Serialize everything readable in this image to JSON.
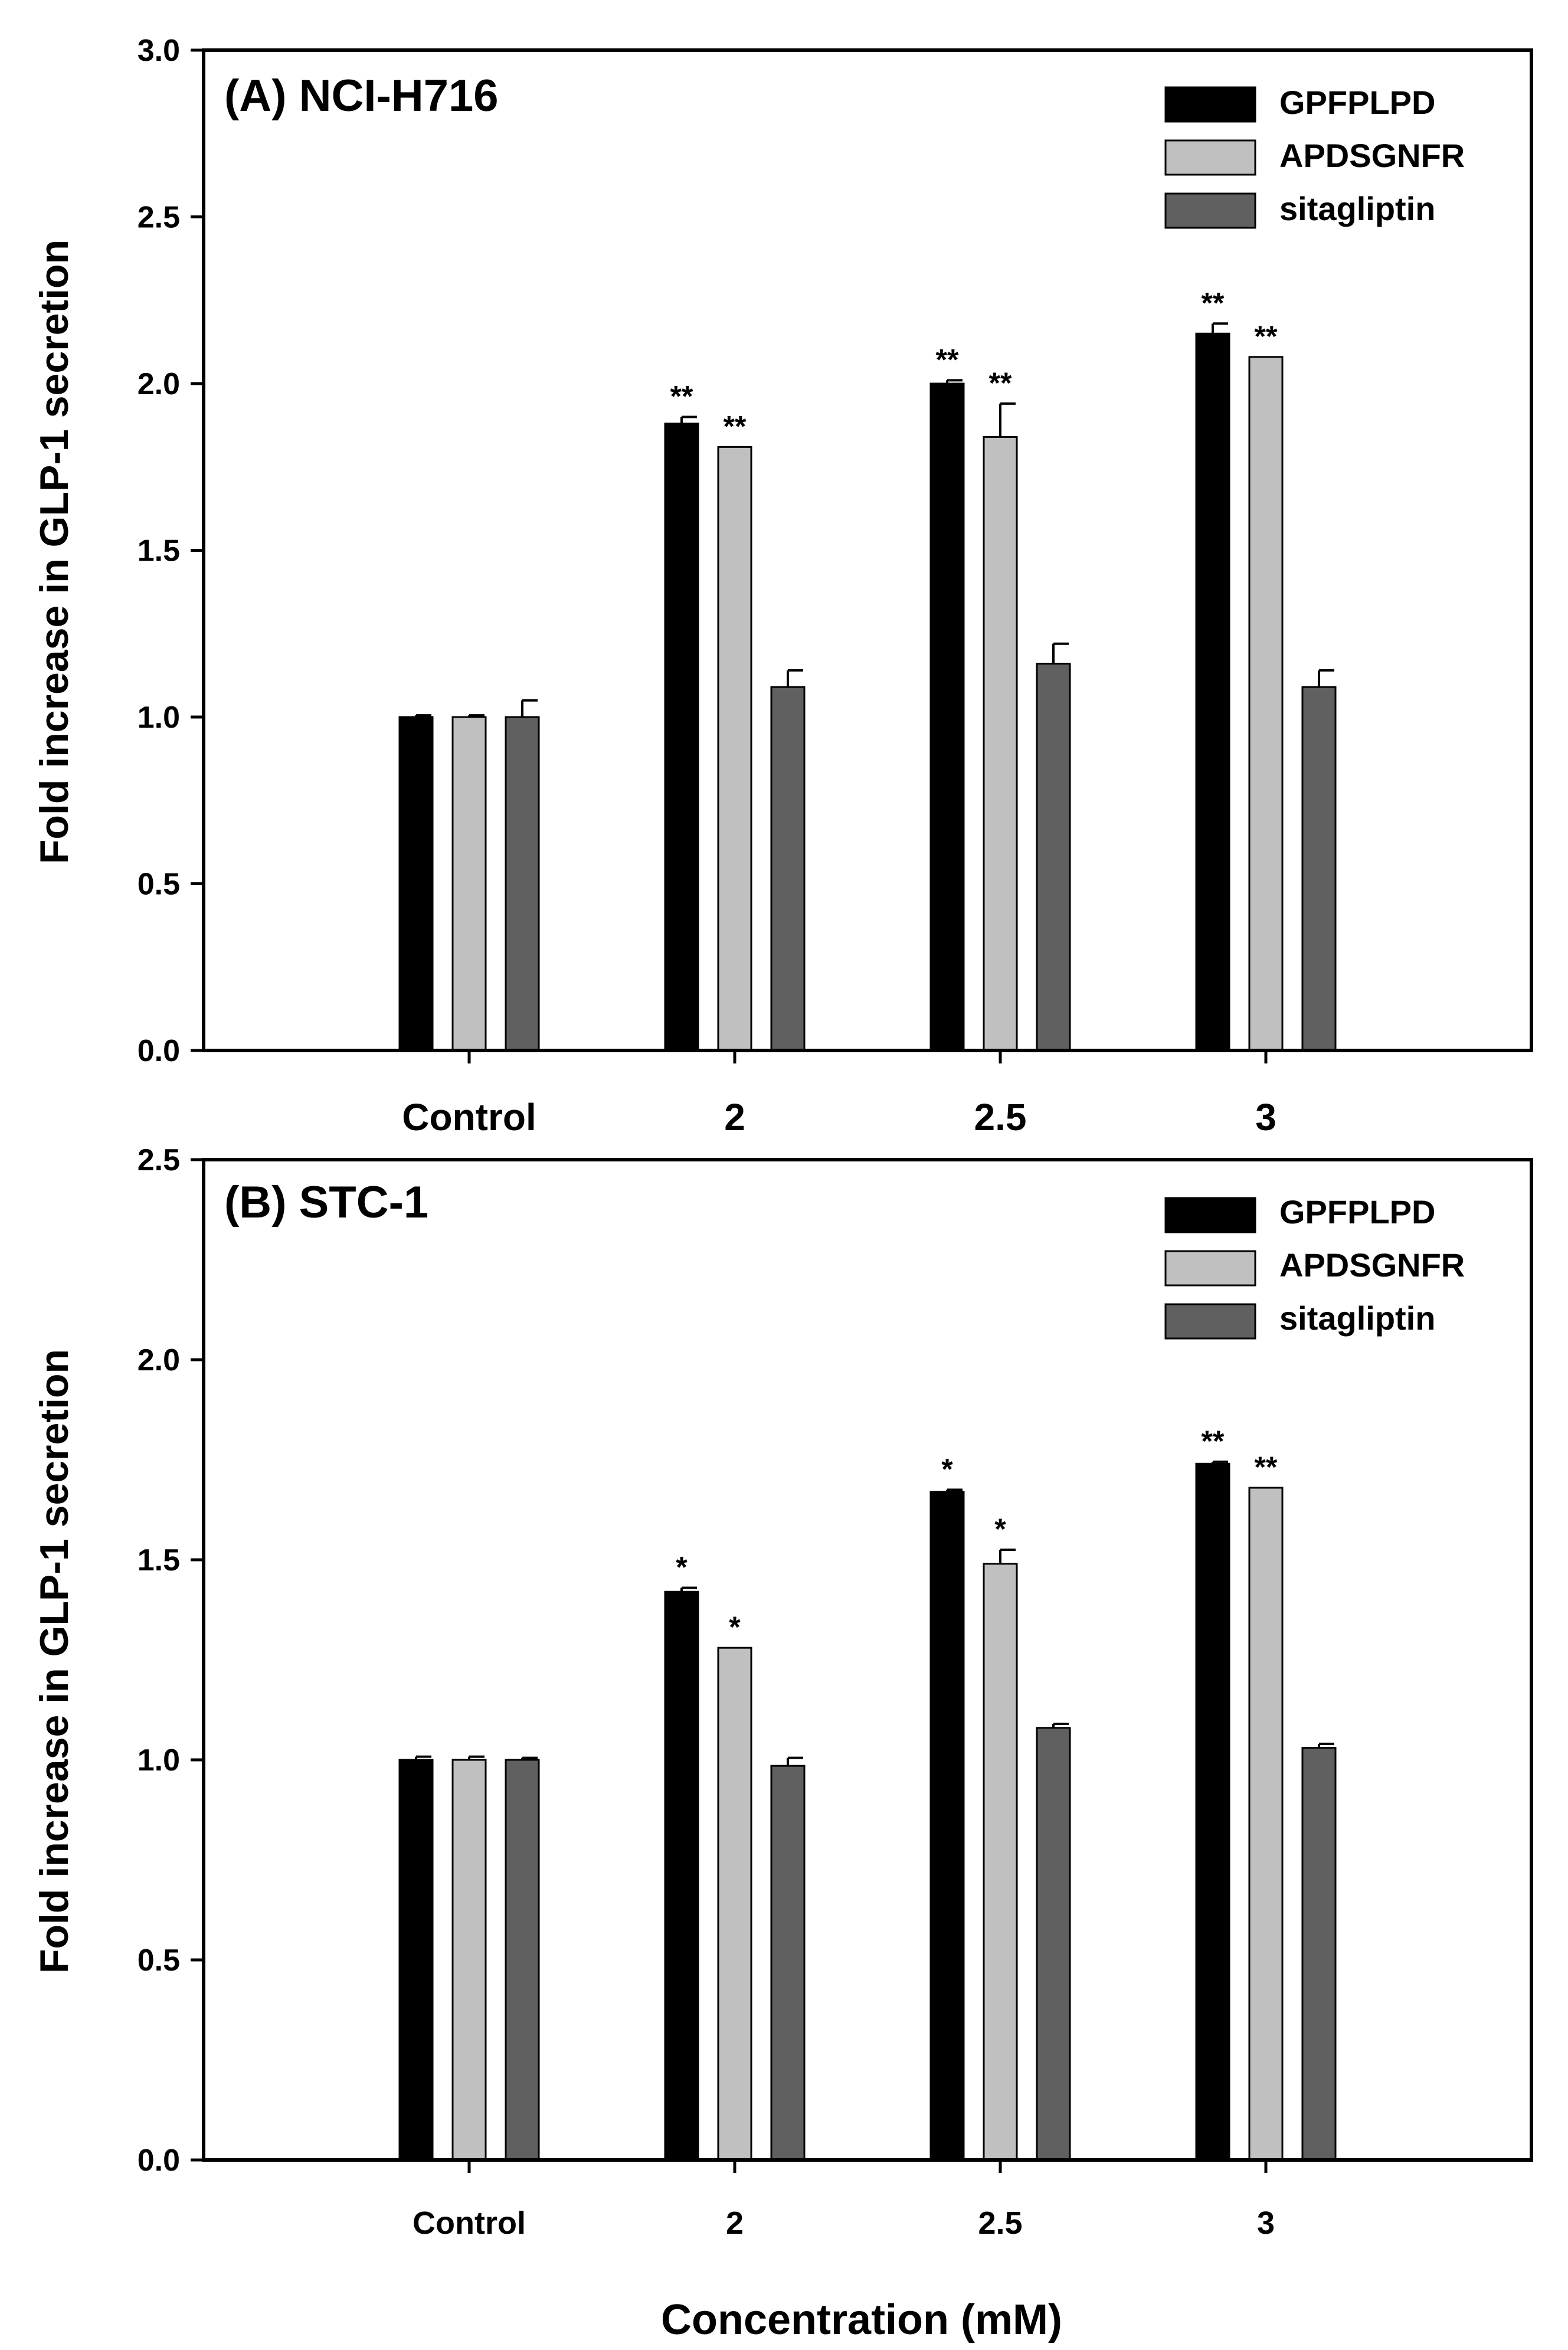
{
  "figure": {
    "xlabel": "Concentration (mM)"
  },
  "chart_data": [
    {
      "type": "bar",
      "title": "(A) NCI-H716",
      "ylabel": "Fold increase in GLP-1 secretion",
      "xlabel": "",
      "categories": [
        "Control",
        "2",
        "2.5",
        "3"
      ],
      "ylim": [
        0,
        3.0
      ],
      "yticks": [
        0.0,
        0.5,
        1.0,
        1.5,
        2.0,
        2.5,
        3.0
      ],
      "ytick_labels": [
        "0.0",
        "0.5",
        "1.0",
        "1.5",
        "2.0",
        "2.5",
        "3.0"
      ],
      "legend_position": "top-right",
      "series": [
        {
          "name": "GPFPLPD",
          "color": "#000000",
          "values": [
            1.0,
            1.88,
            2.0,
            2.15
          ],
          "errors": [
            0.005,
            0.02,
            0.01,
            0.03
          ],
          "significance": [
            "",
            "**",
            "**",
            "**"
          ]
        },
        {
          "name": "APDSGNFR",
          "color": "#c0c0c0",
          "values": [
            1.0,
            1.81,
            1.84,
            2.08
          ],
          "errors": [
            0.005,
            0.0,
            0.1,
            0.0
          ],
          "significance": [
            "",
            "**",
            "**",
            "**"
          ]
        },
        {
          "name": "sitagliptin",
          "color": "#606060",
          "values": [
            1.0,
            1.09,
            1.16,
            1.09
          ],
          "errors": [
            0.05,
            0.05,
            0.06,
            0.05
          ],
          "significance": [
            "",
            "",
            "",
            ""
          ]
        }
      ]
    },
    {
      "type": "bar",
      "title": "(B) STC-1",
      "ylabel": "Fold increase in GLP-1 secretion",
      "xlabel": "Concentration (mM)",
      "categories": [
        "Control",
        "2",
        "2.5",
        "3"
      ],
      "ylim": [
        0,
        2.5
      ],
      "yticks": [
        0.0,
        0.5,
        1.0,
        1.5,
        2.0,
        2.5
      ],
      "ytick_labels": [
        "0.0",
        "0.5",
        "1.0",
        "1.5",
        "2.0",
        "2.5"
      ],
      "legend_position": "top-right",
      "series": [
        {
          "name": "GPFPLPD",
          "color": "#000000",
          "values": [
            1.0,
            1.42,
            1.67,
            1.74
          ],
          "errors": [
            0.008,
            0.01,
            0.005,
            0.005
          ],
          "significance": [
            "",
            "*",
            "*",
            "**"
          ]
        },
        {
          "name": "APDSGNFR",
          "color": "#c0c0c0",
          "values": [
            1.0,
            1.28,
            1.49,
            1.68
          ],
          "errors": [
            0.008,
            0.0,
            0.035,
            0.0
          ],
          "significance": [
            "",
            "*",
            "*",
            "**"
          ]
        },
        {
          "name": "sitagliptin",
          "color": "#606060",
          "values": [
            1.0,
            0.985,
            1.08,
            1.03
          ],
          "errors": [
            0.005,
            0.02,
            0.01,
            0.01
          ],
          "significance": [
            "",
            "",
            "",
            ""
          ]
        }
      ]
    }
  ]
}
